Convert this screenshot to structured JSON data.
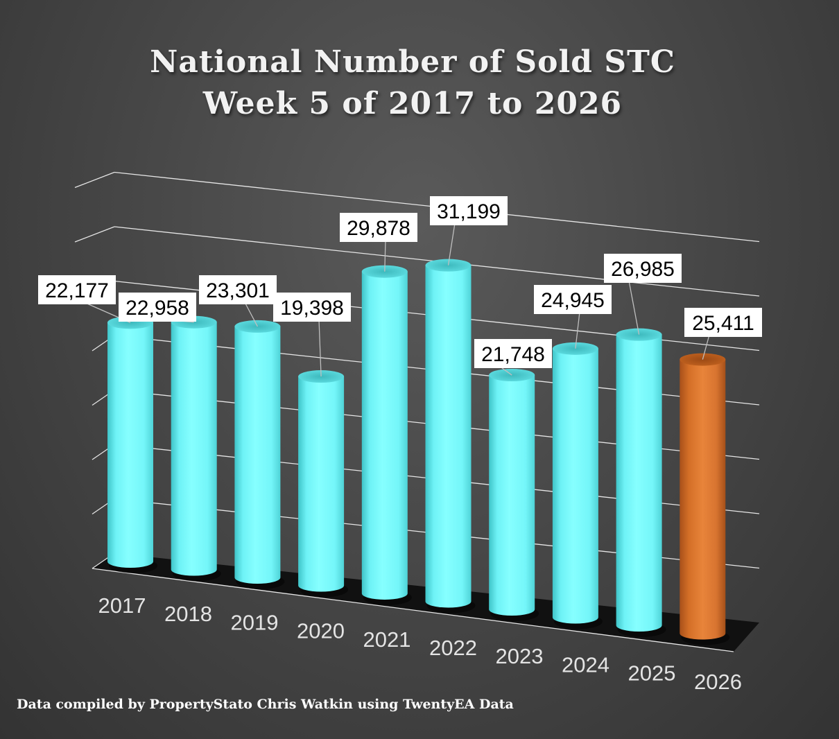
{
  "title": {
    "line1": "National Number of  Sold STC",
    "line2": "Week 5 of 2017 to 2026"
  },
  "footer": "Data compiled by PropertyStato Chris Watkin using TwentyEA Data",
  "chart_data": {
    "type": "bar",
    "style": "3d-cylinder",
    "categories": [
      "2017",
      "2018",
      "2019",
      "2020",
      "2021",
      "2022",
      "2023",
      "2024",
      "2025",
      "2026"
    ],
    "values": [
      22177,
      22958,
      23301,
      19398,
      29878,
      31199,
      21748,
      24945,
      26985,
      25411
    ],
    "data_labels": [
      "22,177",
      "22,958",
      "23,301",
      "19,398",
      "29,878",
      "31,199",
      "21,748",
      "24,945",
      "26,985",
      "25,411"
    ],
    "colors": [
      "#7ffcff",
      "#7ffcff",
      "#7ffcff",
      "#7ffcff",
      "#7ffcff",
      "#7ffcff",
      "#7ffcff",
      "#7ffcff",
      "#7ffcff",
      "#e27b2f"
    ],
    "ylim": [
      0,
      35000
    ],
    "gridlines": true,
    "gridline_interval": 5000,
    "legend": "none",
    "xlabel": "",
    "ylabel": ""
  }
}
